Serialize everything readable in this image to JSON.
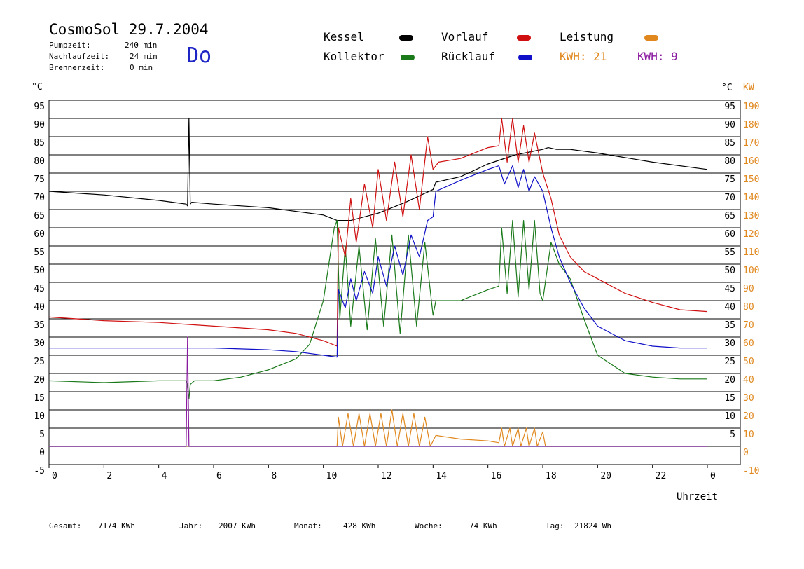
{
  "header": {
    "title": "CosmoSol 29.7.2004",
    "weekday": "Do",
    "info": [
      {
        "label": "Pumpzeit:",
        "value": "240 min"
      },
      {
        "label": "Nachlaufzeit:",
        "value": "24 min"
      },
      {
        "label": "Brennerzeit:",
        "value": "0 min"
      }
    ]
  },
  "legend": {
    "kessel": "Kessel",
    "kollektor": "Kollektor",
    "vorlauf": "Vorlauf",
    "ruecklauf": "Rücklauf",
    "leistung": "Leistung",
    "kwh1": "KWH: 21",
    "kwh2": "KWH: 9"
  },
  "colors": {
    "kessel": "#000000",
    "kollektor": "#1a7a1a",
    "vorlauf": "#d01010",
    "ruecklauf": "#1010c8",
    "leistung": "#e0881e",
    "kwh2": "#8a1aa0",
    "baseline": "#37d7d7"
  },
  "axes": {
    "left_unit": "°C",
    "right_unit_c": "°C",
    "right_unit_kw": "KW",
    "xlabel": "Uhrzeit"
  },
  "footer": [
    {
      "label": "Gesamt:",
      "value": "7174 KWh"
    },
    {
      "label": "Jahr:",
      "value": "2007 KWh"
    },
    {
      "label": "Monat:",
      "value": "428 KWh"
    },
    {
      "label": "Woche:",
      "value": "74 KWh"
    },
    {
      "label": "Tag:",
      "value": "21824 Wh"
    }
  ],
  "chart_data": {
    "type": "line",
    "x_ticks": [
      "0",
      "2",
      "4",
      "6",
      "8",
      "10",
      "12",
      "14",
      "16",
      "18",
      "20",
      "22",
      "0"
    ],
    "xlim": [
      0,
      24
    ],
    "ylim": [
      -5,
      95
    ],
    "left_ticks": [
      95,
      90,
      85,
      80,
      75,
      70,
      65,
      60,
      55,
      50,
      45,
      40,
      35,
      30,
      25,
      20,
      15,
      10,
      5,
      0,
      -5
    ],
    "right_c_ticks": [
      95,
      90,
      85,
      80,
      75,
      70,
      65,
      60,
      55,
      50,
      45,
      40,
      35,
      30,
      25,
      20,
      15,
      10,
      5
    ],
    "right_kw_ticks": [
      190,
      180,
      170,
      160,
      150,
      140,
      130,
      120,
      110,
      100,
      90,
      80,
      70,
      60,
      50,
      40,
      30,
      20,
      10,
      0,
      -10
    ],
    "series": [
      {
        "name": "Kessel",
        "key": "kessel",
        "points": [
          [
            0,
            70
          ],
          [
            2,
            69
          ],
          [
            4,
            67.5
          ],
          [
            5,
            66.5
          ],
          [
            5.05,
            66
          ],
          [
            5.1,
            90
          ],
          [
            5.15,
            66.5
          ],
          [
            5.2,
            67
          ],
          [
            6,
            66.5
          ],
          [
            8,
            65.5
          ],
          [
            10,
            63.5
          ],
          [
            10.5,
            62
          ],
          [
            11,
            62
          ],
          [
            12,
            64
          ],
          [
            13,
            67
          ],
          [
            14,
            70.5
          ],
          [
            14.1,
            72.5
          ],
          [
            15,
            74
          ],
          [
            16,
            77.5
          ],
          [
            17,
            80
          ],
          [
            18,
            81.5
          ],
          [
            18.2,
            82
          ],
          [
            18.5,
            81.5
          ],
          [
            19,
            81.5
          ],
          [
            20,
            80.5
          ],
          [
            22,
            78
          ],
          [
            24,
            76
          ]
        ]
      },
      {
        "name": "Kollektor",
        "key": "kollektor",
        "points": [
          [
            0,
            18
          ],
          [
            2,
            17.5
          ],
          [
            4,
            18
          ],
          [
            5,
            18
          ],
          [
            5.05,
            17
          ],
          [
            5.1,
            13
          ],
          [
            5.15,
            17
          ],
          [
            5.3,
            18
          ],
          [
            6,
            18
          ],
          [
            7,
            19
          ],
          [
            8,
            21
          ],
          [
            9,
            24
          ],
          [
            9.5,
            28
          ],
          [
            10,
            40
          ],
          [
            10.4,
            60
          ],
          [
            10.5,
            62
          ],
          [
            10.6,
            35
          ],
          [
            10.8,
            55
          ],
          [
            11,
            33
          ],
          [
            11.3,
            55
          ],
          [
            11.6,
            32
          ],
          [
            11.9,
            57
          ],
          [
            12.2,
            33
          ],
          [
            12.5,
            58
          ],
          [
            12.8,
            31
          ],
          [
            13.1,
            58
          ],
          [
            13.4,
            33
          ],
          [
            13.7,
            56
          ],
          [
            14,
            36
          ],
          [
            14.1,
            40
          ],
          [
            15,
            40
          ],
          [
            16,
            43
          ],
          [
            16.4,
            44
          ],
          [
            16.5,
            60
          ],
          [
            16.7,
            42
          ],
          [
            16.9,
            62
          ],
          [
            17.1,
            41
          ],
          [
            17.3,
            62
          ],
          [
            17.5,
            43
          ],
          [
            17.7,
            62
          ],
          [
            17.9,
            42
          ],
          [
            18,
            40
          ],
          [
            18.3,
            56
          ],
          [
            18.6,
            50
          ],
          [
            19,
            46
          ],
          [
            19.5,
            35
          ],
          [
            20,
            25
          ],
          [
            21,
            20
          ],
          [
            22,
            19
          ],
          [
            23,
            18.5
          ],
          [
            24,
            18.5
          ]
        ]
      },
      {
        "name": "Vorlauf",
        "key": "vorlauf",
        "points": [
          [
            0,
            35.5
          ],
          [
            2,
            34.5
          ],
          [
            4,
            34
          ],
          [
            6,
            33
          ],
          [
            8,
            32
          ],
          [
            9,
            31
          ],
          [
            10,
            29
          ],
          [
            10.5,
            27.5
          ],
          [
            10.55,
            60
          ],
          [
            10.8,
            52
          ],
          [
            11,
            68
          ],
          [
            11.2,
            56
          ],
          [
            11.5,
            72
          ],
          [
            11.8,
            60
          ],
          [
            12,
            76
          ],
          [
            12.3,
            62
          ],
          [
            12.6,
            78
          ],
          [
            12.9,
            63
          ],
          [
            13.2,
            80
          ],
          [
            13.5,
            65
          ],
          [
            13.8,
            85
          ],
          [
            14,
            76
          ],
          [
            14.2,
            78
          ],
          [
            15,
            79
          ],
          [
            16,
            82
          ],
          [
            16.4,
            82.5
          ],
          [
            16.5,
            90
          ],
          [
            16.7,
            78
          ],
          [
            16.9,
            90
          ],
          [
            17.1,
            78
          ],
          [
            17.3,
            88
          ],
          [
            17.5,
            78
          ],
          [
            17.7,
            86
          ],
          [
            18,
            75
          ],
          [
            18.3,
            68
          ],
          [
            18.6,
            58
          ],
          [
            19,
            52
          ],
          [
            19.5,
            48
          ],
          [
            20,
            46
          ],
          [
            21,
            42
          ],
          [
            22,
            39.5
          ],
          [
            23,
            37.5
          ],
          [
            24,
            37
          ]
        ]
      },
      {
        "name": "Rücklauf",
        "key": "ruecklauf",
        "points": [
          [
            0,
            27
          ],
          [
            2,
            27
          ],
          [
            4,
            27
          ],
          [
            6,
            27
          ],
          [
            8,
            26.5
          ],
          [
            9,
            26
          ],
          [
            10,
            25
          ],
          [
            10.5,
            24.5
          ],
          [
            10.55,
            43
          ],
          [
            10.8,
            38
          ],
          [
            11,
            46
          ],
          [
            11.2,
            40
          ],
          [
            11.5,
            48
          ],
          [
            11.8,
            42
          ],
          [
            12,
            52
          ],
          [
            12.3,
            44
          ],
          [
            12.6,
            55
          ],
          [
            12.9,
            47
          ],
          [
            13.2,
            58
          ],
          [
            13.5,
            52
          ],
          [
            13.8,
            62
          ],
          [
            14,
            63
          ],
          [
            14.1,
            70
          ],
          [
            15,
            73
          ],
          [
            16,
            76
          ],
          [
            16.4,
            77
          ],
          [
            16.6,
            72
          ],
          [
            16.9,
            77
          ],
          [
            17.1,
            71
          ],
          [
            17.3,
            76
          ],
          [
            17.5,
            70
          ],
          [
            17.7,
            74
          ],
          [
            18,
            70
          ],
          [
            18.3,
            60
          ],
          [
            18.6,
            52
          ],
          [
            19,
            45
          ],
          [
            19.5,
            38
          ],
          [
            20,
            33
          ],
          [
            21,
            29
          ],
          [
            22,
            27.5
          ],
          [
            23,
            27
          ],
          [
            24,
            27
          ]
        ]
      },
      {
        "name": "Leistung",
        "key": "leistung",
        "points": [
          [
            0,
            0
          ],
          [
            10.5,
            0
          ],
          [
            10.55,
            8
          ],
          [
            10.7,
            0
          ],
          [
            10.9,
            9
          ],
          [
            11.1,
            0
          ],
          [
            11.3,
            9
          ],
          [
            11.5,
            0
          ],
          [
            11.7,
            9
          ],
          [
            11.9,
            0
          ],
          [
            12.1,
            9
          ],
          [
            12.3,
            0
          ],
          [
            12.5,
            10
          ],
          [
            12.7,
            0
          ],
          [
            12.9,
            9
          ],
          [
            13.1,
            0
          ],
          [
            13.3,
            9
          ],
          [
            13.5,
            0
          ],
          [
            13.7,
            8
          ],
          [
            13.9,
            0
          ],
          [
            14.1,
            3
          ],
          [
            15,
            2
          ],
          [
            16,
            1.5
          ],
          [
            16.4,
            1
          ],
          [
            16.5,
            5
          ],
          [
            16.6,
            0
          ],
          [
            16.8,
            5
          ],
          [
            16.9,
            0
          ],
          [
            17.1,
            5
          ],
          [
            17.2,
            0
          ],
          [
            17.4,
            5
          ],
          [
            17.5,
            0
          ],
          [
            17.7,
            5
          ],
          [
            17.8,
            0
          ],
          [
            18,
            4
          ],
          [
            18.1,
            0
          ],
          [
            24,
            0
          ]
        ]
      },
      {
        "name": "KWH 9",
        "key": "kwh2",
        "points": [
          [
            0,
            0
          ],
          [
            5,
            0
          ],
          [
            5.05,
            30
          ],
          [
            5.1,
            0
          ],
          [
            5.15,
            0
          ],
          [
            24,
            0
          ]
        ]
      }
    ]
  }
}
